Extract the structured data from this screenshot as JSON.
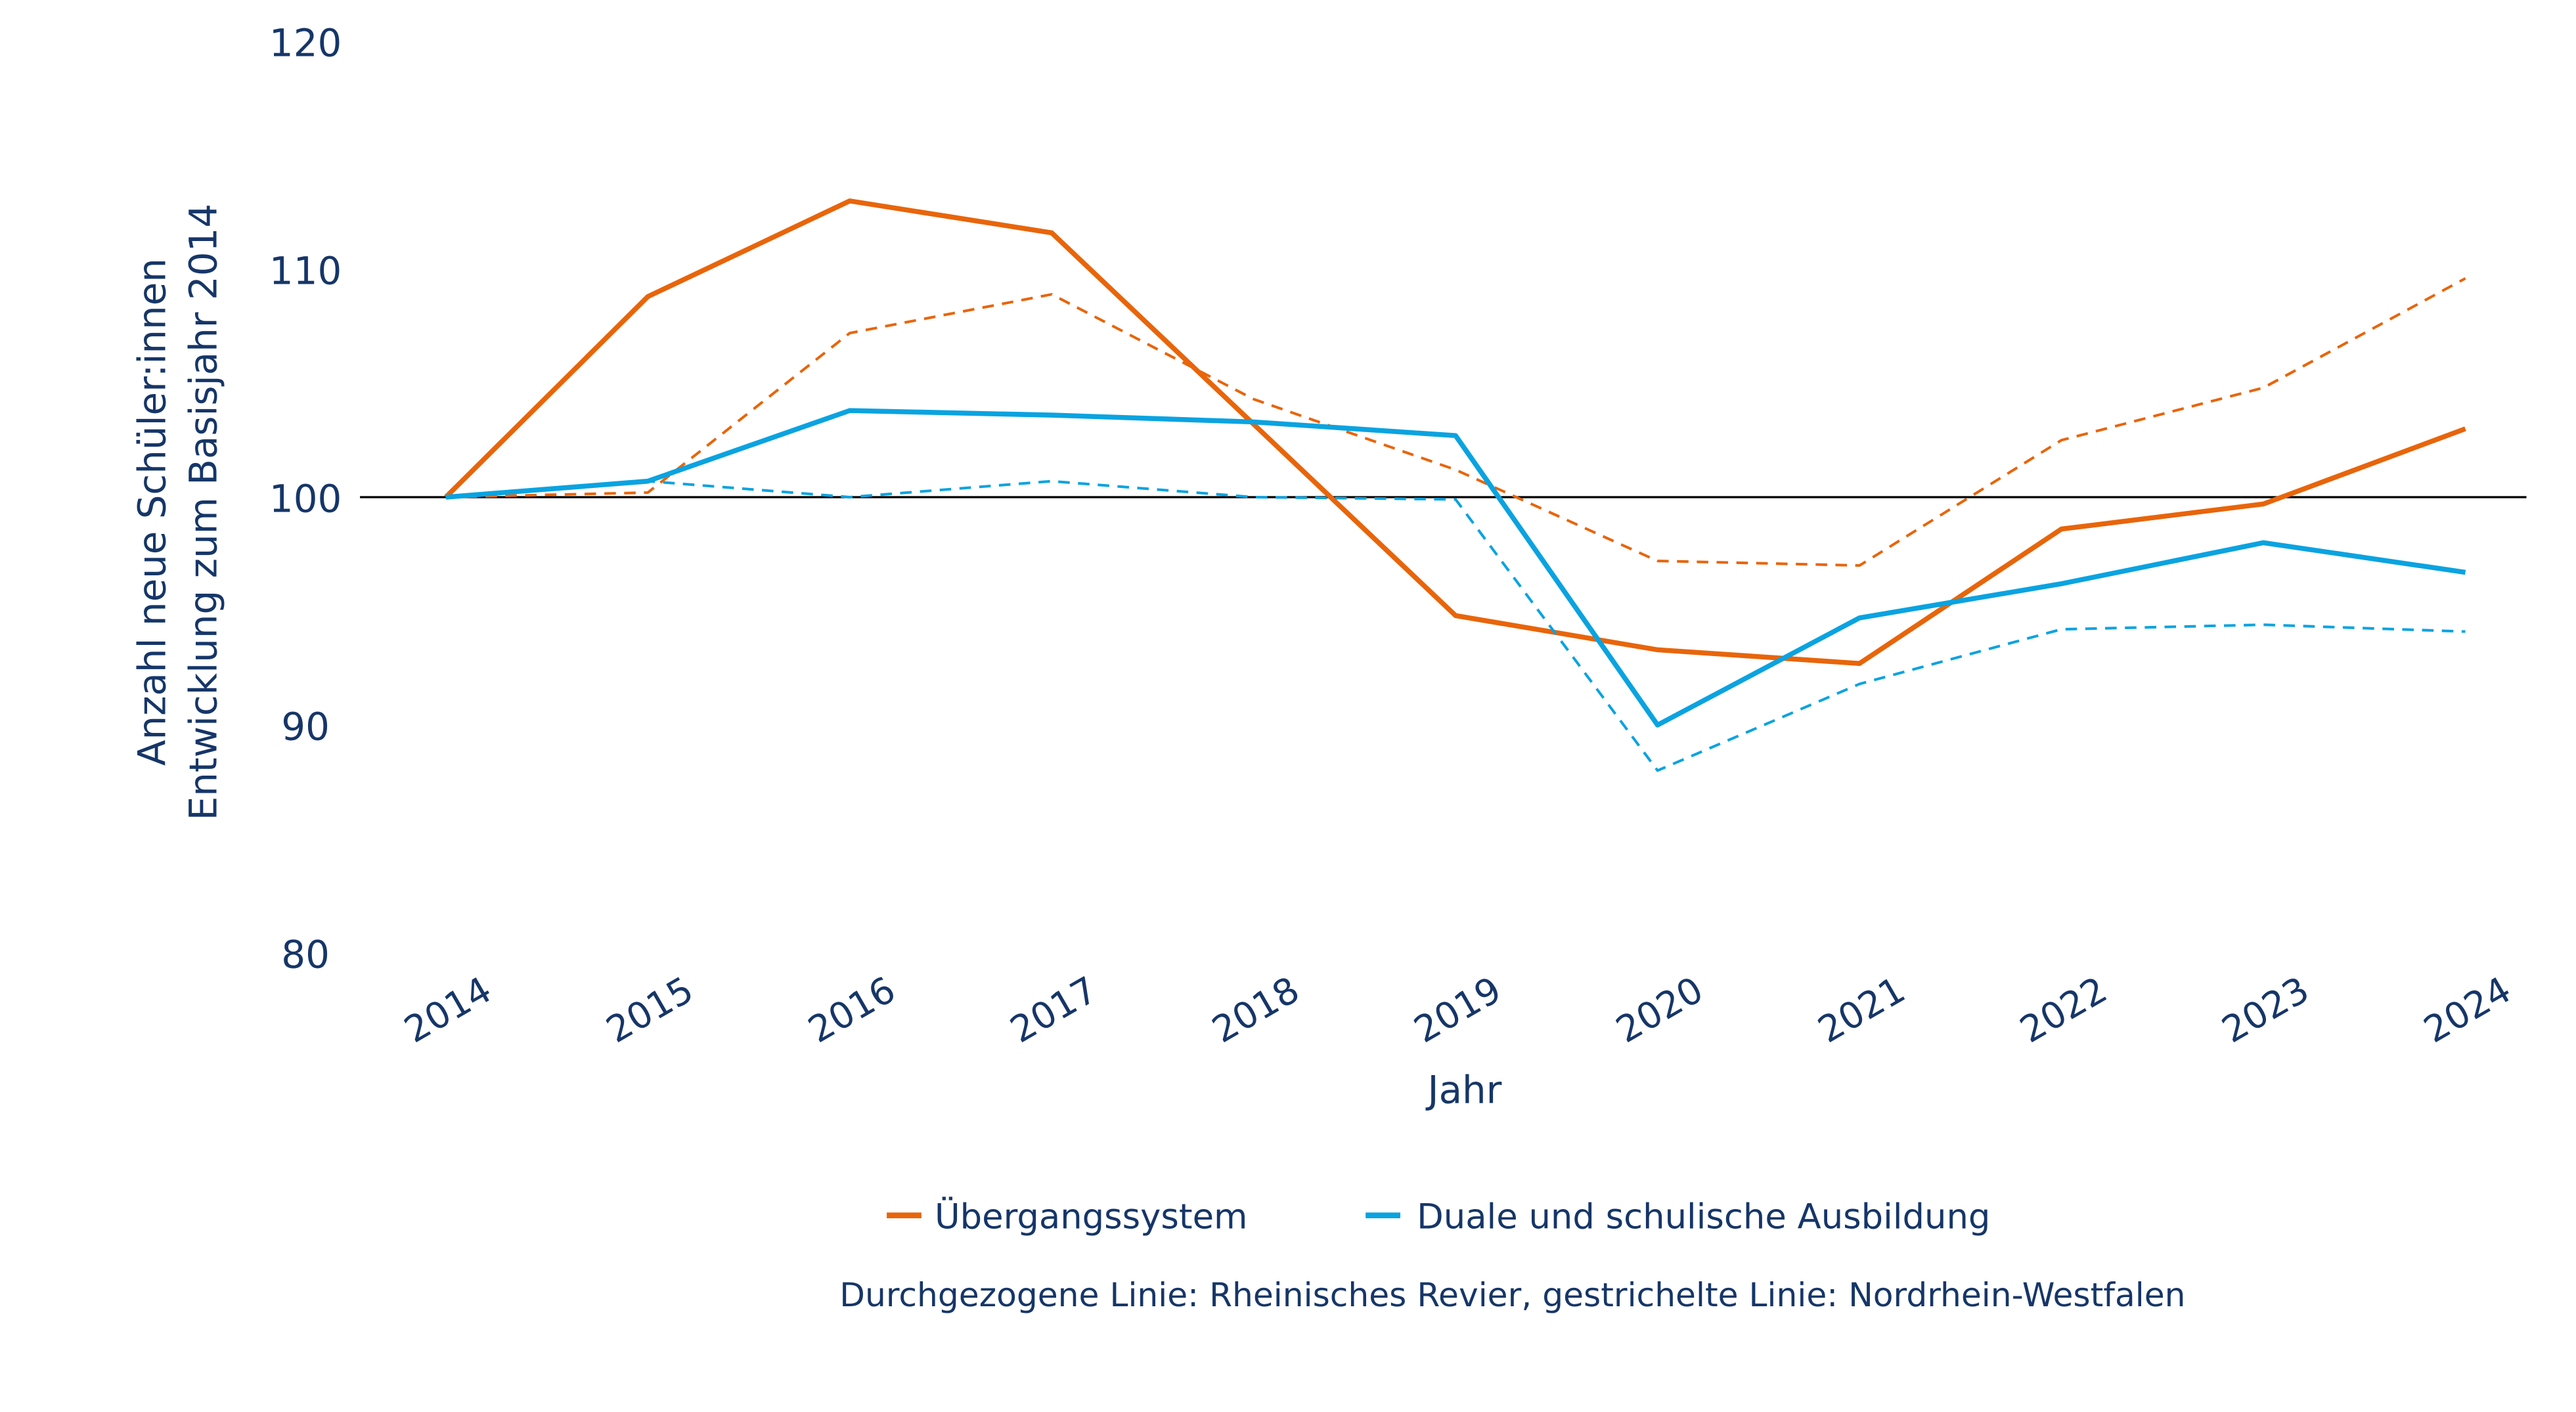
{
  "chart_data": {
    "type": "line",
    "title": "",
    "xlabel": "Jahr",
    "ylabel_lines": [
      "Anzahl neue Schüler:innen",
      "Entwicklung zum Basisjahr 2014"
    ],
    "x": [
      "2014",
      "2015",
      "2016",
      "2017",
      "2018",
      "2019",
      "2020",
      "2021",
      "2022",
      "2023",
      "2024"
    ],
    "ylim": [
      80,
      120
    ],
    "yticks": [
      "80",
      "90",
      "100",
      "110",
      "120"
    ],
    "reference_line": 100,
    "grid": false,
    "legend_position": "bottom",
    "series": [
      {
        "name": "Übergangssystem",
        "region": "Rheinisches Revier",
        "style": "solid",
        "color": "#E8650A",
        "values": [
          100,
          108.8,
          113.0,
          111.6,
          103.2,
          94.8,
          93.3,
          92.7,
          98.6,
          99.7,
          103.0
        ]
      },
      {
        "name": "Übergangssystem",
        "region": "Nordrhein-Westfalen",
        "style": "dashed",
        "color": "#E8650A",
        "values": [
          100,
          100.2,
          107.2,
          108.9,
          104.3,
          101.2,
          97.2,
          97.0,
          102.5,
          104.8,
          109.6
        ]
      },
      {
        "name": "Duale und schulische Ausbildung",
        "region": "Rheinisches Revier",
        "style": "solid",
        "color": "#0AA3E0",
        "values": [
          100,
          100.7,
          103.8,
          103.6,
          103.3,
          102.7,
          90.0,
          94.7,
          96.2,
          98.0,
          96.7
        ]
      },
      {
        "name": "Duale und schulische Ausbildung",
        "region": "Nordrhein-Westfalen",
        "style": "dashed",
        "color": "#0AA3E0",
        "values": [
          100,
          100.7,
          100.0,
          100.7,
          100.0,
          99.9,
          88.0,
          91.8,
          94.2,
          94.4,
          94.1
        ]
      }
    ],
    "legend": [
      {
        "label": "Übergangssystem",
        "color": "#E8650A"
      },
      {
        "label": "Duale und schulische Ausbildung",
        "color": "#0AA3E0"
      }
    ],
    "note": "Durchgezogene Linie: Rheinisches Revier, gestrichelte Linie: Nordrhein-Westfalen"
  }
}
